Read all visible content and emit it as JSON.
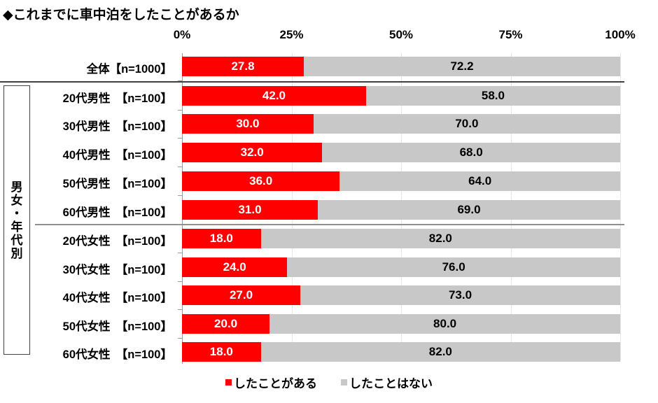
{
  "title": "◆これまでに車中泊をしたことがあるか",
  "axis": {
    "ticks": [
      "0%",
      "25%",
      "50%",
      "75%",
      "100%"
    ]
  },
  "group_label": "男女・年代別",
  "legend": {
    "items": [
      {
        "label": "したことがある",
        "color": "#ff0000"
      },
      {
        "label": "したことはない",
        "color": "#c8c8c8"
      }
    ]
  },
  "rows": [
    {
      "label": "全体【n=1000】",
      "yes": "27.8",
      "no": "72.2"
    },
    {
      "label": "20代男性　【n=100】",
      "yes": "42.0",
      "no": "58.0"
    },
    {
      "label": "30代男性　【n=100】",
      "yes": "30.0",
      "no": "70.0"
    },
    {
      "label": "40代男性　【n=100】",
      "yes": "32.0",
      "no": "68.0"
    },
    {
      "label": "50代男性　【n=100】",
      "yes": "36.0",
      "no": "64.0"
    },
    {
      "label": "60代男性　【n=100】",
      "yes": "31.0",
      "no": "69.0"
    },
    {
      "label": "20代女性　【n=100】",
      "yes": "18.0",
      "no": "82.0"
    },
    {
      "label": "30代女性　【n=100】",
      "yes": "24.0",
      "no": "76.0"
    },
    {
      "label": "40代女性　【n=100】",
      "yes": "27.0",
      "no": "73.0"
    },
    {
      "label": "50代女性　【n=100】",
      "yes": "20.0",
      "no": "80.0"
    },
    {
      "label": "60代女性　【n=100】",
      "yes": "18.0",
      "no": "82.0"
    }
  ],
  "chart_data": {
    "type": "bar",
    "orientation": "horizontal",
    "stacked": "100%",
    "title": "◆これまでに車中泊をしたことがあるか",
    "categories": [
      "全体【n=1000】",
      "20代男性【n=100】",
      "30代男性【n=100】",
      "40代男性【n=100】",
      "50代男性【n=100】",
      "60代男性【n=100】",
      "20代女性【n=100】",
      "30代女性【n=100】",
      "40代女性【n=100】",
      "50代女性【n=100】",
      "60代女性【n=100】"
    ],
    "series": [
      {
        "name": "したことがある",
        "color": "#ff0000",
        "values": [
          27.8,
          42.0,
          30.0,
          32.0,
          36.0,
          31.0,
          18.0,
          24.0,
          27.0,
          20.0,
          18.0
        ]
      },
      {
        "name": "したことはない",
        "color": "#c8c8c8",
        "values": [
          72.2,
          58.0,
          70.0,
          68.0,
          64.0,
          69.0,
          82.0,
          76.0,
          73.0,
          80.0,
          82.0
        ]
      }
    ],
    "xlabel": "",
    "ylabel": "",
    "xlim": [
      0,
      100
    ],
    "x_ticks": [
      "0%",
      "25%",
      "50%",
      "75%",
      "100%"
    ],
    "grid": true,
    "legend_position": "bottom",
    "group_annotation": "男女・年代別"
  }
}
